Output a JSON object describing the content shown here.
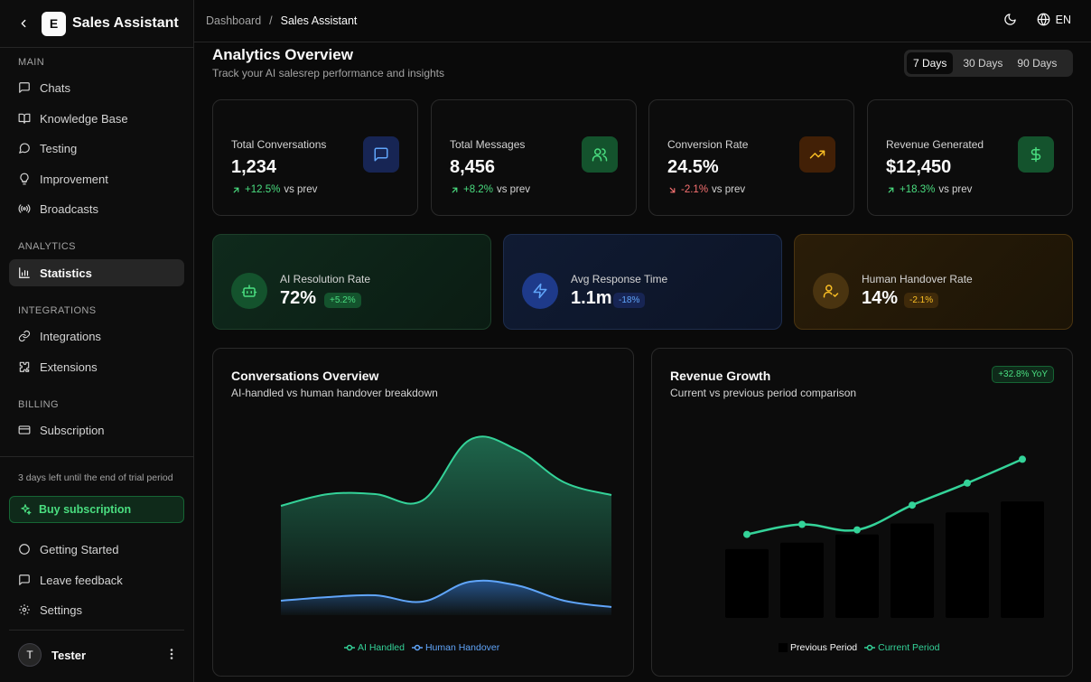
{
  "sidebar": {
    "brand_initial": "E",
    "brand_name": "Sales Assistant",
    "sections": {
      "main": "MAIN",
      "analytics": "ANALYTICS",
      "integrations": "INTEGRATIONS",
      "billing": "BILLING"
    },
    "items": {
      "chats": "Chats",
      "knowledge_base": "Knowledge Base",
      "testing": "Testing",
      "improvement": "Improvement",
      "broadcasts": "Broadcasts",
      "statistics": "Statistics",
      "integrations": "Integrations",
      "extensions": "Extensions",
      "subscription": "Subscription",
      "getting_started": "Getting Started",
      "leave_feedback": "Leave feedback",
      "settings": "Settings"
    },
    "trial_text": "3 days left until the end of trial period",
    "buy_label": "Buy subscription",
    "user": {
      "initial": "T",
      "name": "Tester"
    }
  },
  "topbar": {
    "breadcrumb_parent": "Dashboard",
    "breadcrumb_sep": "/",
    "breadcrumb_current": "Sales Assistant",
    "lang": "EN"
  },
  "header": {
    "title": "Analytics Overview",
    "subtitle": "Track your AI salesrep performance and insights",
    "ranges": [
      "7 Days",
      "30 Days",
      "90 Days"
    ],
    "active_range": "7 Days"
  },
  "stats": [
    {
      "label": "Total Conversations",
      "value": "1,234",
      "delta": "+12.5%",
      "suffix": "vs prev",
      "direction": "up",
      "icon": "message-square-icon"
    },
    {
      "label": "Total Messages",
      "value": "8,456",
      "delta": "+8.2%",
      "suffix": "vs prev",
      "direction": "up",
      "icon": "users-icon"
    },
    {
      "label": "Conversion Rate",
      "value": "24.5%",
      "delta": "-2.1%",
      "suffix": "vs prev",
      "direction": "down",
      "icon": "trending-up-icon"
    },
    {
      "label": "Revenue Generated",
      "value": "$12,450",
      "delta": "+18.3%",
      "suffix": "vs prev",
      "direction": "up",
      "icon": "dollar-icon"
    }
  ],
  "metrics": [
    {
      "label": "AI Resolution Rate",
      "value": "72%",
      "badge": "+5.2%",
      "icon": "bot-icon"
    },
    {
      "label": "Avg Response Time",
      "value": "1.1m",
      "badge": "-18%",
      "icon": "zap-icon"
    },
    {
      "label": "Human Handover Rate",
      "value": "14%",
      "badge": "-2.1%",
      "icon": "user-check-icon"
    }
  ],
  "conversations_panel": {
    "title": "Conversations Overview",
    "subtitle": "AI-handled vs human handover breakdown"
  },
  "revenue_panel": {
    "title": "Revenue Growth",
    "subtitle": "Current vs previous period comparison",
    "badge": "+32.8% YoY"
  },
  "chart_data": [
    {
      "type": "area",
      "title": "Conversations Overview",
      "series": [
        {
          "name": "AI Handled",
          "values": [
            121,
            134,
            134,
            127,
            194,
            183,
            147,
            133
          ],
          "color": "#34d399"
        },
        {
          "name": "Human Handover",
          "values": [
            16,
            20,
            22,
            15,
            37,
            33,
            16,
            9
          ],
          "color": "#60a5fa"
        }
      ],
      "ylim": [
        0,
        200
      ],
      "legend": "bottom"
    },
    {
      "type": "bar",
      "title": "Revenue Growth",
      "series": [
        {
          "name": "Previous Period",
          "values": [
            7500,
            8200,
            9100,
            10300,
            11500,
            12700
          ],
          "color": "#000000"
        },
        {
          "name": "Current Period",
          "values": [
            9100,
            10200,
            9600,
            12300,
            14700,
            17300
          ],
          "color": "#34d399"
        }
      ],
      "ylim": [
        0,
        20000
      ],
      "legend": "bottom"
    }
  ],
  "legends": {
    "conv": [
      "AI Handled",
      "Human Handover"
    ],
    "rev": [
      "Previous Period",
      "Current Period"
    ]
  }
}
